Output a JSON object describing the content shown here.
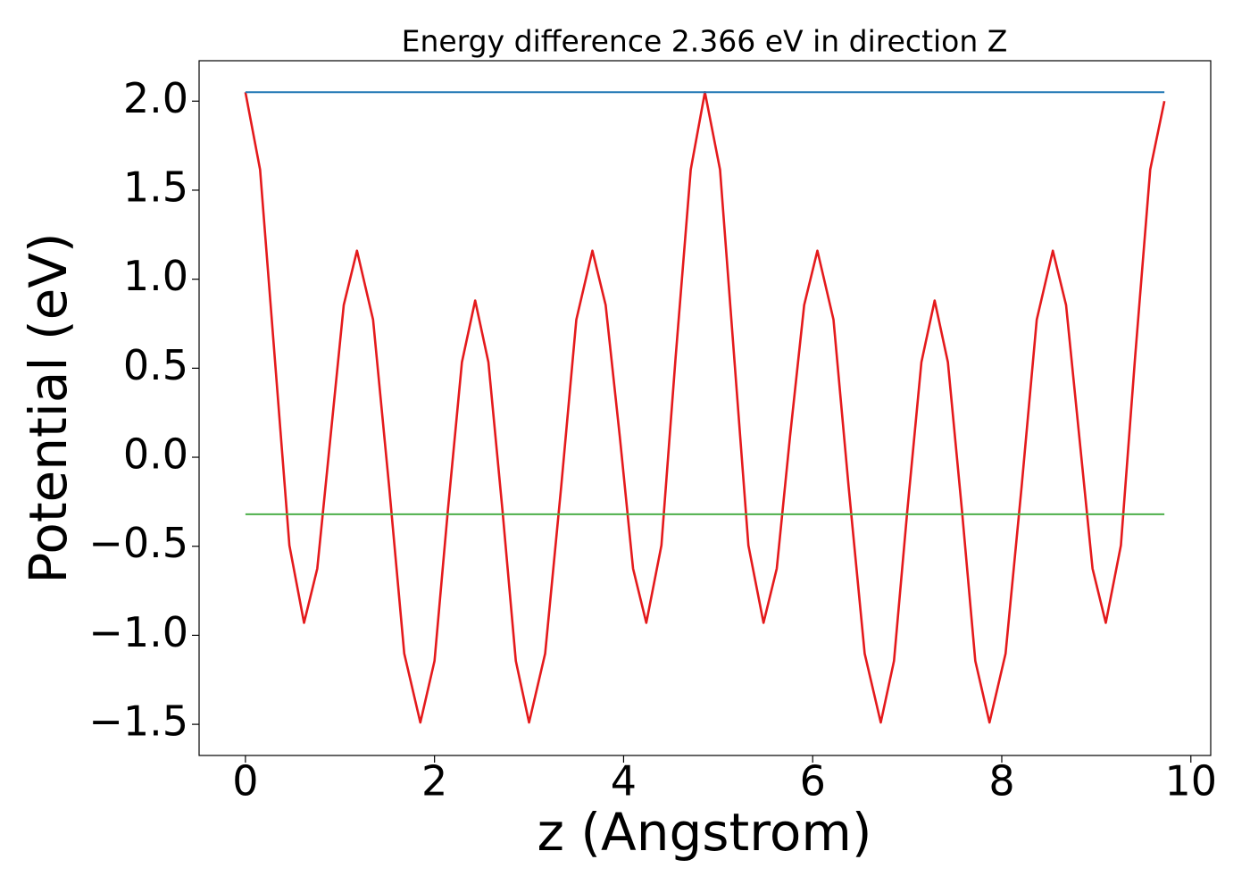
{
  "chart_data": {
    "type": "line",
    "title": "Energy difference 2.366 eV in direction Z",
    "x_label": "z (Angstrom)",
    "y_label": "Potential (eV)",
    "xlim": [
      -0.49,
      10.21
    ],
    "ylim": [
      -1.675,
      2.227
    ],
    "xticks": [
      0,
      2,
      4,
      6,
      8,
      10
    ],
    "yticks": [
      {
        "value": -1.5,
        "label": "−1.5"
      },
      {
        "value": -1.0,
        "label": "−1.0"
      },
      {
        "value": -0.5,
        "label": "−0.5"
      },
      {
        "value": 0.0,
        "label": "0.0"
      },
      {
        "value": 0.5,
        "label": "0.5"
      },
      {
        "value": 1.0,
        "label": "1.0"
      },
      {
        "value": 1.5,
        "label": "1.5"
      },
      {
        "value": 2.0,
        "label": "2.0"
      }
    ],
    "series": [
      {
        "color": "#e41a1c",
        "x": [
          0,
          0.155,
          0.31,
          0.465,
          0.62,
          0.76,
          0.9,
          1.04,
          1.18,
          1.35,
          1.52,
          1.68,
          1.85,
          2.0,
          2.14,
          2.29,
          2.43,
          2.57,
          2.72,
          2.86,
          3.0,
          3.17,
          3.34,
          3.5,
          3.67,
          3.81,
          3.96,
          4.1,
          4.24,
          4.4,
          4.55,
          4.71,
          4.86,
          5.02,
          5.17,
          5.32,
          5.48,
          5.62,
          5.76,
          5.91,
          6.05,
          6.22,
          6.38,
          6.55,
          6.72,
          6.86,
          7.0,
          7.15,
          7.29,
          7.43,
          7.58,
          7.72,
          7.87,
          8.04,
          8.21,
          8.37,
          8.54,
          8.68,
          8.82,
          8.96,
          9.1,
          9.26,
          9.41,
          9.57,
          9.72
        ],
        "values": [
          2.05,
          1.615,
          0.56,
          -0.495,
          -0.93,
          -0.625,
          0.115,
          0.855,
          1.16,
          0.773,
          -0.165,
          -1.103,
          -1.49,
          -1.144,
          -0.305,
          0.534,
          0.88,
          0.534,
          -0.305,
          -1.144,
          -1.49,
          -1.103,
          -0.165,
          0.773,
          1.16,
          0.855,
          0.115,
          -0.625,
          -0.93,
          -0.495,
          0.56,
          1.615,
          2.05,
          1.615,
          0.56,
          -0.495,
          -0.93,
          -0.625,
          0.115,
          0.855,
          1.16,
          0.773,
          -0.165,
          -1.103,
          -1.49,
          -1.144,
          -0.305,
          0.534,
          0.88,
          0.534,
          -0.305,
          -1.144,
          -1.49,
          -1.103,
          -0.165,
          0.773,
          1.16,
          0.855,
          0.115,
          -0.625,
          -0.93,
          -0.495,
          0.56,
          1.615,
          2.0
        ]
      },
      {
        "color": "#1f77b4",
        "x": [
          0,
          9.72
        ],
        "values": [
          2.05,
          2.05
        ]
      },
      {
        "color": "#4daf4a",
        "x": [
          0,
          9.72
        ],
        "values": [
          -0.32,
          -0.32
        ]
      }
    ]
  }
}
